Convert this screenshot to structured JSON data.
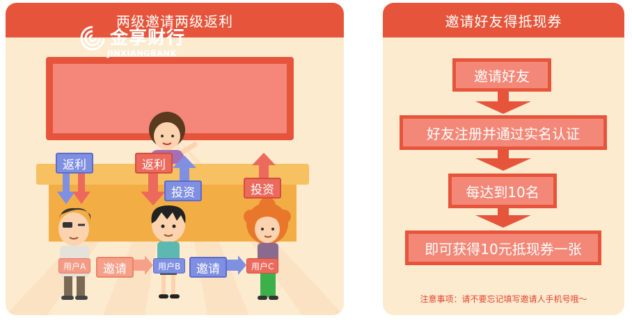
{
  "left_panel": {
    "title": "两级邀请两级返利",
    "logo": {
      "cn": "金享财行",
      "en": "JINXIANGBANK"
    },
    "tags": {
      "rebate_left": "返利",
      "rebate_mid": "返利",
      "invest_mid": "投资",
      "invest_right": "投资",
      "invite_1": "邀请",
      "invite_2": "邀请"
    },
    "users": {
      "a": "用户A",
      "b": "用户B",
      "c": "用户C"
    }
  },
  "right_panel": {
    "title": "邀请好友得抵现券",
    "steps": [
      "邀请好友",
      "好友注册并通过实名认证",
      "每达到10名",
      "即可获得10元抵现券一张"
    ],
    "note": "注意事项：请不要忘记填写邀请人手机号哦～"
  },
  "colors": {
    "header": "#e6553b",
    "panel_bg": "#fdebd0",
    "step_fill": "#f48878",
    "blue_tag": "#7f8fe2",
    "red_tag": "#ec6a5c",
    "note_text": "#e5432f"
  }
}
